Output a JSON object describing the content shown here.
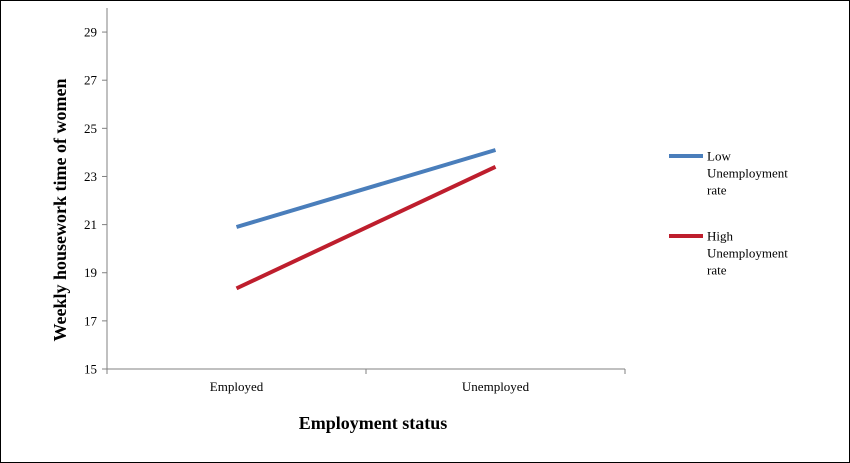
{
  "chart_data": {
    "type": "line",
    "categories": [
      "Employed",
      "Unemployed"
    ],
    "series": [
      {
        "name": "Low Unemployment rate",
        "legend_lines": [
          "Low",
          "Unemployment",
          "rate"
        ],
        "color": "#4a7ebb",
        "values": [
          20.9,
          24.1
        ]
      },
      {
        "name": "High Unemployment rate",
        "legend_lines": [
          "High",
          "Unemployment",
          "rate"
        ],
        "color": "#be1e2d",
        "values": [
          18.35,
          23.4
        ]
      }
    ],
    "xlabel": "Employment status",
    "ylabel": "Weekly housework time of women",
    "ylim": [
      15,
      30
    ],
    "yticks": [
      15,
      17,
      19,
      21,
      23,
      25,
      27,
      29
    ],
    "grid": false,
    "legend_position": "right"
  }
}
